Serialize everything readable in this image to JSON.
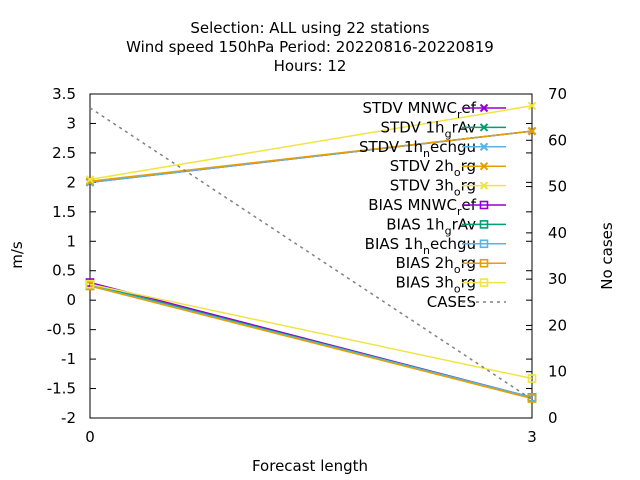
{
  "chart_data": {
    "type": "line",
    "title_lines": [
      "Selection: ALL using    22 stations",
      "Wind speed 150hPa   Period: 20220816-20220819",
      "Hours:  12"
    ],
    "xlabel": "Forecast length",
    "ylabel": "m/s",
    "y2label": "No cases",
    "x": [
      0,
      3
    ],
    "xticks": [
      "0",
      "3"
    ],
    "ylim": [
      -2,
      3.5
    ],
    "yticks": [
      "3.5",
      "3",
      "2.5",
      "2",
      "1.5",
      "1",
      "0.5",
      "0",
      "-0.5",
      "-1",
      "-1.5",
      "-2"
    ],
    "y2lim": [
      0,
      70
    ],
    "y2ticks": [
      "70",
      "60",
      "50",
      "40",
      "30",
      "20",
      "10",
      "0"
    ],
    "legend_position": "top-right",
    "series": [
      {
        "name": "STDV MNWC_ref",
        "color": "#9400d3",
        "marker": "x",
        "values": [
          2.0,
          2.87
        ],
        "legend": {
          "pre": "STDV MNWC",
          "sub": "r",
          "post": "ef"
        }
      },
      {
        "name": "STDV 1h_grAv",
        "color": "#009e73",
        "marker": "x",
        "values": [
          2.01,
          2.87
        ],
        "legend": {
          "pre": "STDV 1h",
          "sub": "g",
          "post": "rAv"
        }
      },
      {
        "name": "STDV 1h_nechgu",
        "color": "#56b4e9",
        "marker": "x",
        "values": [
          2.0,
          2.87
        ],
        "legend": {
          "pre": "STDV 1h",
          "sub": "n",
          "post": "echgu"
        }
      },
      {
        "name": "STDV 2h_org",
        "color": "#e69f00",
        "marker": "x",
        "values": [
          2.02,
          2.87
        ],
        "legend": {
          "pre": "STDV 2h",
          "sub": "o",
          "post": "rg"
        }
      },
      {
        "name": "STDV 3h_org",
        "color": "#f0e442",
        "marker": "x",
        "values": [
          2.05,
          3.3
        ],
        "legend": {
          "pre": "STDV 3h",
          "sub": "o",
          "post": "rg"
        }
      },
      {
        "name": "BIAS MNWC_ref",
        "color": "#9400d3",
        "marker": "square",
        "values": [
          0.3,
          -1.65
        ],
        "legend": {
          "pre": "BIAS MNWC",
          "sub": "r",
          "post": "ef"
        }
      },
      {
        "name": "BIAS 1h_grAv",
        "color": "#009e73",
        "marker": "square",
        "values": [
          0.27,
          -1.65
        ],
        "legend": {
          "pre": "BIAS 1h",
          "sub": "g",
          "post": "rAv"
        }
      },
      {
        "name": "BIAS 1h_nechgu",
        "color": "#56b4e9",
        "marker": "square",
        "values": [
          0.25,
          -1.65
        ],
        "legend": {
          "pre": "BIAS 1h",
          "sub": "n",
          "post": "echgu"
        }
      },
      {
        "name": "BIAS 2h_org",
        "color": "#e69f00",
        "marker": "square",
        "values": [
          0.24,
          -1.67
        ],
        "legend": {
          "pre": "BIAS 2h",
          "sub": "o",
          "post": "rg"
        }
      },
      {
        "name": "BIAS 3h_org",
        "color": "#f0e442",
        "marker": "square",
        "values": [
          0.27,
          -1.33
        ],
        "legend": {
          "pre": "BIAS 3h",
          "sub": "o",
          "post": "rg"
        }
      },
      {
        "name": "CASES",
        "color": "#808080",
        "marker": "none",
        "dashed": true,
        "axis": "y2",
        "values": [
          67,
          4
        ],
        "legend": {
          "pre": "CASES",
          "sub": "",
          "post": ""
        }
      }
    ]
  }
}
